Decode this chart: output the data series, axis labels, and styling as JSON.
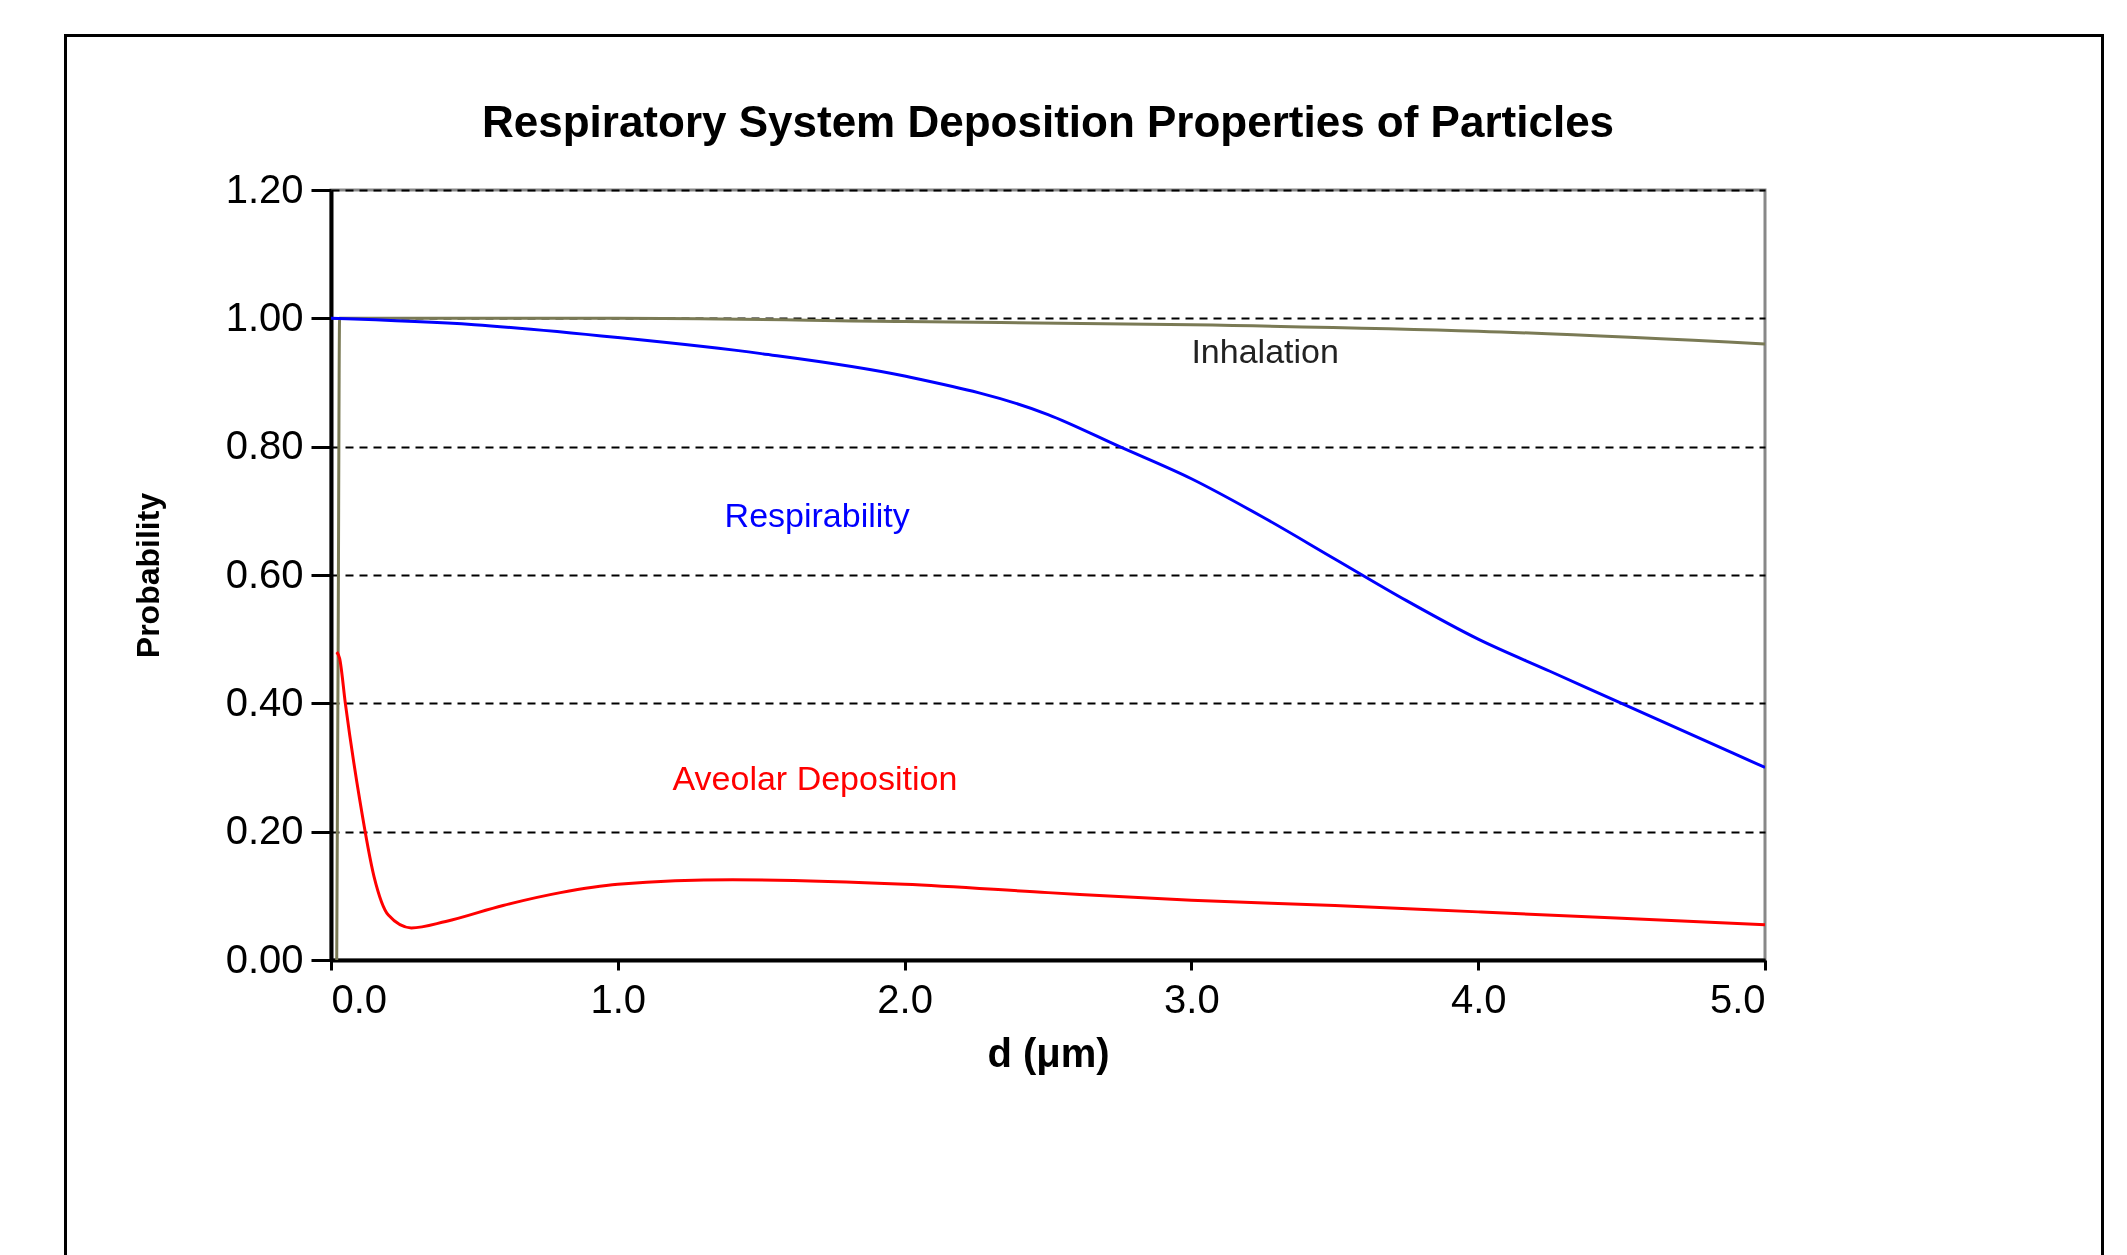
{
  "chart_data": {
    "type": "line",
    "title": "Respiratory  System Deposition  Properties of Particles",
    "xlabel": "d (μm)",
    "ylabel": "Probability",
    "xlim": [
      0,
      5
    ],
    "xticks": [
      {
        "value": 0,
        "label": "0.0"
      },
      {
        "value": 1,
        "label": "1.0"
      },
      {
        "value": 2,
        "label": "2.0"
      },
      {
        "value": 3,
        "label": "3.0"
      },
      {
        "value": 4,
        "label": "4.0"
      },
      {
        "value": 5,
        "label": "5.0"
      }
    ],
    "ylim": [
      0,
      1.2
    ],
    "yticks": [
      {
        "value": 0,
        "label": "0.00"
      },
      {
        "value": 0.2,
        "label": "0.20"
      },
      {
        "value": 0.4,
        "label": "0.40"
      },
      {
        "value": 0.6,
        "label": "0.60"
      },
      {
        "value": 0.8,
        "label": "0.80"
      },
      {
        "value": 1,
        "label": "1.00"
      },
      {
        "value": 1.2,
        "label": "1.20"
      }
    ],
    "grid": "y",
    "legend": false,
    "series": [
      {
        "name": "Inhalation",
        "color": "#7a7a55",
        "x": [
          0.02,
          0.025,
          0.03,
          0.5,
          1,
          2,
          3,
          4,
          5
        ],
        "values": [
          0,
          0.5,
          1.0,
          1.0,
          1.0,
          0.995,
          0.99,
          0.98,
          0.96
        ]
      },
      {
        "name": "Respirability",
        "color": "#0000ff",
        "x": [
          0,
          0.5,
          1,
          1.5,
          2,
          2.5,
          2.75,
          3,
          3.25,
          3.5,
          3.75,
          4,
          4.25,
          4.5,
          4.75,
          5
        ],
        "values": [
          1.0,
          0.99,
          0.97,
          0.945,
          0.91,
          0.85,
          0.8,
          0.75,
          0.69,
          0.625,
          0.56,
          0.5,
          0.45,
          0.4,
          0.35,
          0.3
        ]
      },
      {
        "name": "Aveolar Deposition",
        "color": "#ff0000",
        "x": [
          0.02,
          0.03,
          0.05,
          0.1,
          0.15,
          0.2,
          0.28,
          0.4,
          0.6,
          0.8,
          1.0,
          1.4,
          2.0,
          2.5,
          3,
          3.5,
          4,
          4.5,
          5
        ],
        "values": [
          0.48,
          0.47,
          0.4,
          0.25,
          0.13,
          0.07,
          0.05,
          0.06,
          0.085,
          0.105,
          0.118,
          0.125,
          0.118,
          0.105,
          0.093,
          0.085,
          0.075,
          0.065,
          0.055
        ]
      }
    ]
  }
}
